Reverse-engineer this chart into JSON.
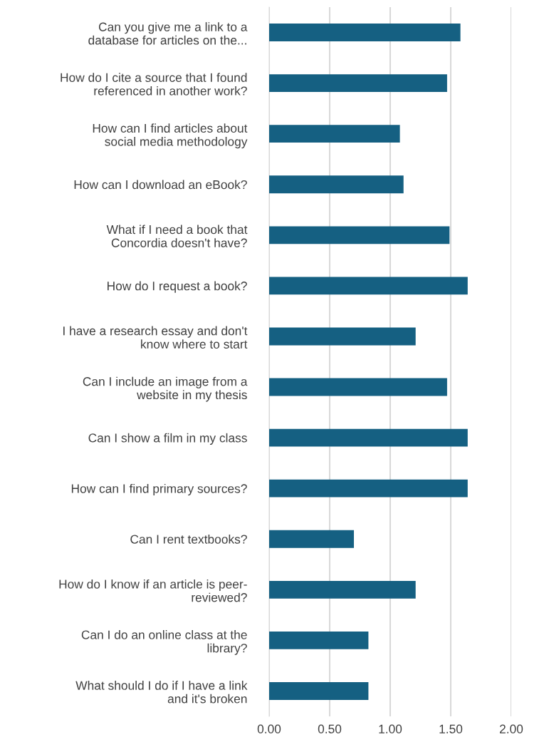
{
  "chart_data": {
    "type": "bar",
    "orientation": "horizontal",
    "categories": [
      "Can you give me a link to a\ndatabase for articles on the...",
      "How do I cite a source that I found\nreferenced in another work?",
      "How can I find articles about\nsocial media methodology",
      "How can I download an eBook?",
      "What if I need a book that\nConcordia doesn't have?",
      "How do I request a book?",
      "I have a research essay and don't\nknow where to start",
      "Can I include an image from a\nwebsite in my thesis",
      "Can I show a film in my class",
      "How can I find primary sources?",
      "Can I rent textbooks?",
      "How do I know if an article is peer-\nreviewed?",
      "Can I do an online class at the\nlibrary?",
      "What should I do if I have a link\nand it's broken"
    ],
    "values": [
      1.58,
      1.47,
      1.08,
      1.11,
      1.49,
      1.64,
      1.21,
      1.47,
      1.64,
      1.64,
      0.7,
      1.21,
      0.82,
      0.82
    ],
    "color": "#156082",
    "xlim": [
      0,
      2.0
    ],
    "xticks": [
      {
        "value": 0,
        "label": "0.00"
      },
      {
        "value": 0.5,
        "label": "0.50"
      },
      {
        "value": 1.0,
        "label": "1.00"
      },
      {
        "value": 1.5,
        "label": "1.50"
      },
      {
        "value": 2.0,
        "label": "2.00"
      }
    ],
    "grid": "x",
    "legend": false
  }
}
